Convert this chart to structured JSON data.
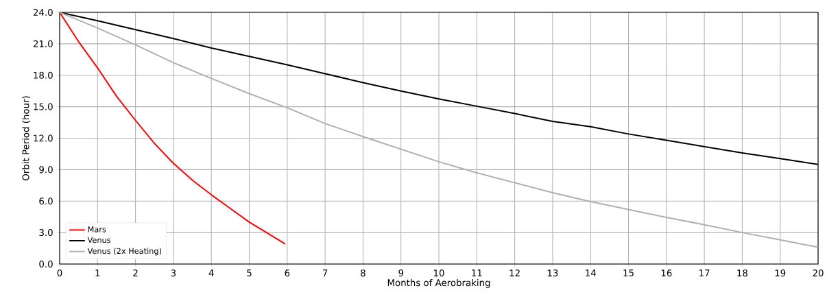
{
  "chart_data": {
    "type": "line",
    "xlabel": "Months of Aerobraking",
    "ylabel": "Orbit Period (hour)",
    "xlim": [
      0,
      20
    ],
    "ylim": [
      0,
      24
    ],
    "xticks": [
      0,
      1,
      2,
      3,
      4,
      5,
      6,
      7,
      8,
      9,
      10,
      11,
      12,
      13,
      14,
      15,
      16,
      17,
      18,
      19,
      20
    ],
    "yticks": [
      {
        "value": 0,
        "label": "0.0"
      },
      {
        "value": 3,
        "label": "3.0"
      },
      {
        "value": 6,
        "label": "6.0"
      },
      {
        "value": 9,
        "label": "9.0"
      },
      {
        "value": 12,
        "label": "12.0"
      },
      {
        "value": 15,
        "label": "15.0"
      },
      {
        "value": 18,
        "label": "18.0"
      },
      {
        "value": 21,
        "label": "21.0"
      },
      {
        "value": 24,
        "label": "24.0"
      }
    ],
    "grid": true,
    "legend": "bottom left",
    "marker": "none",
    "series": [
      {
        "name": "Mars",
        "color": "#ff0000",
        "x": [
          0,
          0.5,
          1,
          1.5,
          2,
          2.5,
          3,
          3.5,
          4,
          4.5,
          5,
          5.5,
          5.95
        ],
        "values": [
          24,
          21.2,
          18.7,
          16.0,
          13.7,
          11.5,
          9.6,
          8.0,
          6.6,
          5.3,
          4.0,
          2.9,
          1.9
        ]
      },
      {
        "name": "Venus",
        "color": "#000000",
        "x": [
          0,
          1,
          2,
          3,
          4,
          5,
          6,
          7,
          8,
          9,
          10,
          11,
          12,
          13,
          14,
          15,
          16,
          17,
          18,
          19,
          20
        ],
        "values": [
          24,
          23.2,
          22.35,
          21.5,
          20.6,
          19.8,
          19.0,
          18.15,
          17.3,
          16.5,
          15.75,
          15.05,
          14.35,
          13.6,
          13.1,
          12.4,
          11.8,
          11.2,
          10.6,
          10.05,
          9.5
        ]
      },
      {
        "name": "Venus (2x Heating)",
        "color": "#b0b0b0",
        "x": [
          0,
          1,
          2,
          3,
          4,
          5,
          6,
          7,
          8,
          9,
          10,
          11,
          12,
          13,
          14,
          15,
          16,
          17,
          18,
          19,
          20
        ],
        "values": [
          24,
          22.5,
          20.9,
          19.2,
          17.7,
          16.25,
          14.9,
          13.4,
          12.15,
          10.95,
          9.75,
          8.7,
          7.75,
          6.8,
          5.95,
          5.2,
          4.45,
          3.75,
          3.0,
          2.3,
          1.6
        ]
      }
    ]
  }
}
